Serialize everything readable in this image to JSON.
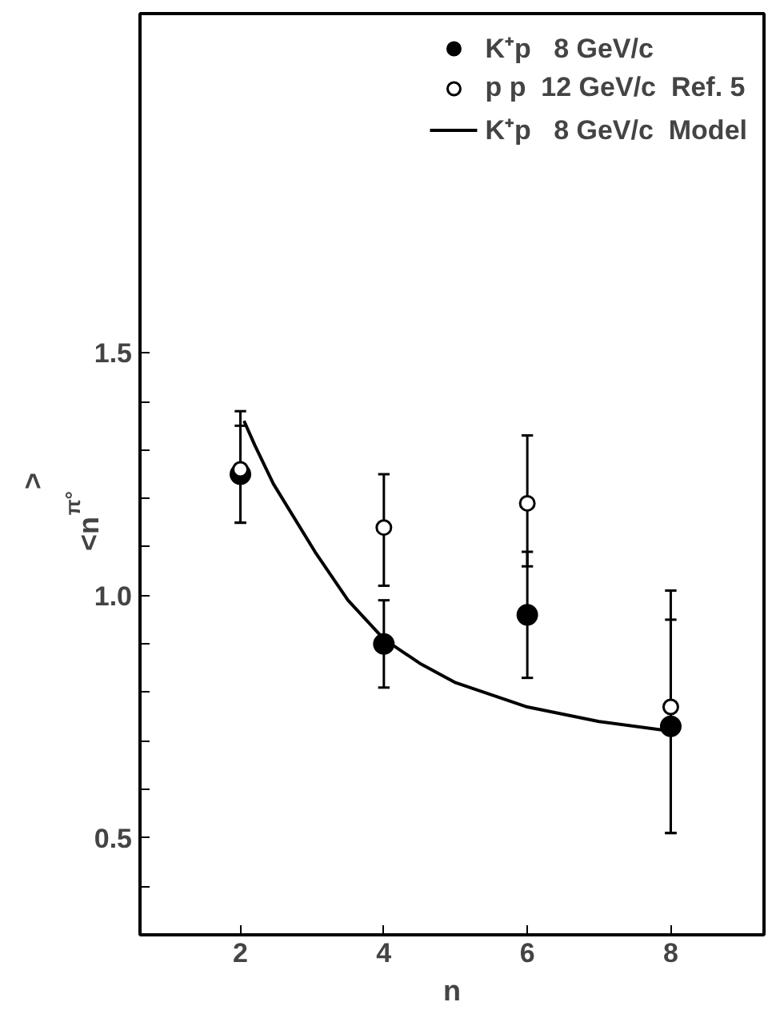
{
  "chart_data": {
    "type": "scatter",
    "xlabel": "n",
    "ylabel": "<n$_{π°}$>",
    "xlim": [
      0.6,
      9.3
    ],
    "ylim": [
      0.3,
      2.2
    ],
    "xticks": [
      2,
      4,
      6,
      8
    ],
    "yticks": [
      {
        "value": 0.4,
        "label": null
      },
      {
        "value": 0.5,
        "label": "0.5"
      },
      {
        "value": 0.6,
        "label": null
      },
      {
        "value": 0.7,
        "label": null
      },
      {
        "value": 0.8,
        "label": null
      },
      {
        "value": 0.9,
        "label": null
      },
      {
        "value": 1.0,
        "label": "1.0"
      },
      {
        "value": 1.1,
        "label": null
      },
      {
        "value": 1.2,
        "label": null
      },
      {
        "value": 1.3,
        "label": null
      },
      {
        "value": 1.4,
        "label": null
      },
      {
        "value": 1.5,
        "label": "1.5"
      }
    ],
    "grid": false,
    "legend": "top right",
    "series": [
      {
        "name": "K⁺p   8 GeV/c",
        "marker": "circle",
        "color": "#000000",
        "x": [
          2,
          4,
          6,
          8
        ],
        "values": [
          1.25,
          0.9,
          0.96,
          0.73
        ],
        "errors": [
          0.1,
          0.09,
          0.13,
          0.22
        ]
      },
      {
        "name": "p p  12 GeV/c  Ref. 5",
        "marker": "circle",
        "color": "#000000",
        "x": [
          2,
          4,
          6,
          8
        ],
        "values": [
          1.26,
          1.14,
          1.19,
          0.77
        ],
        "errors": [
          [
            1.15,
            1.38
          ],
          [
            1.02,
            1.25
          ],
          [
            1.06,
            1.33
          ],
          [
            0.51,
            1.01
          ]
        ]
      },
      {
        "name": "K⁺p   8 GeV/c  Model",
        "type": "line",
        "line_style": "solid",
        "color": "#000000",
        "x": [
          2.05,
          2.2,
          2.46,
          3.04,
          3.5,
          4.0,
          4.5,
          5.0,
          6.0,
          7.0,
          8.0
        ],
        "values": [
          1.36,
          1.31,
          1.23,
          1.09,
          0.99,
          0.91,
          0.86,
          0.82,
          0.77,
          0.74,
          0.72
        ]
      }
    ]
  }
}
